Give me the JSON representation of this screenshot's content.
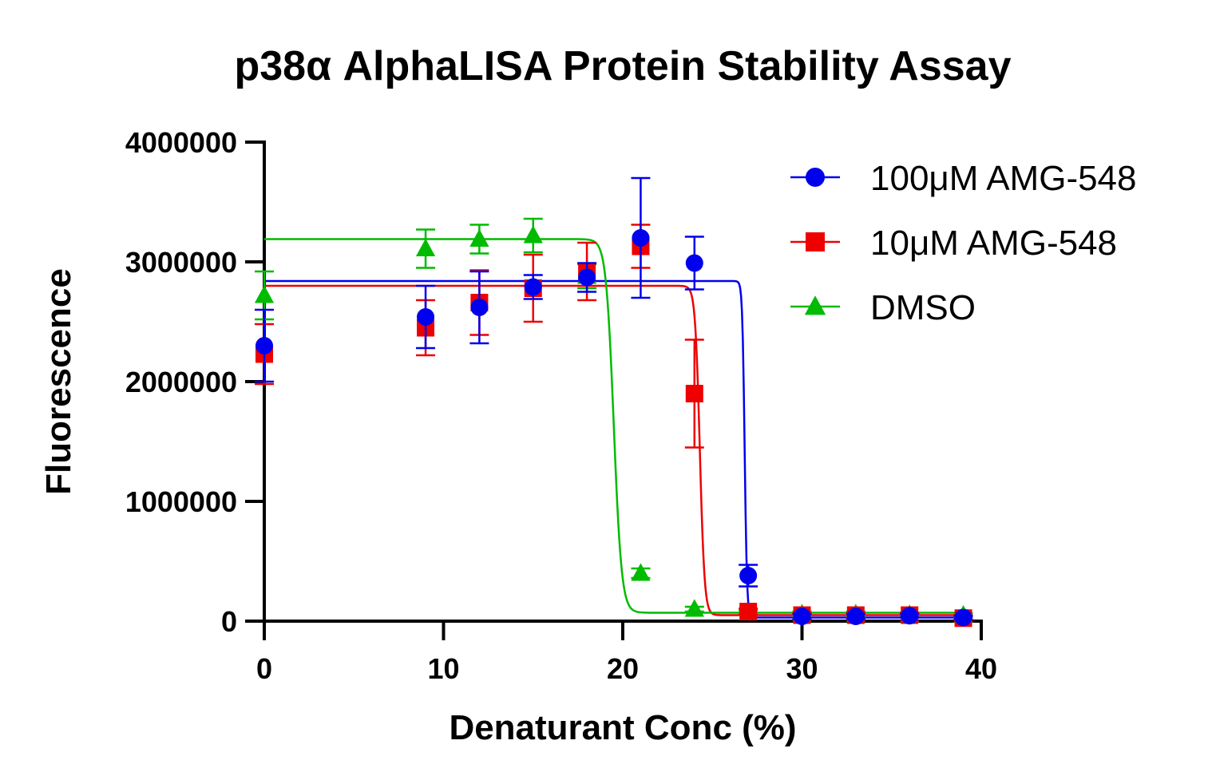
{
  "chart_data": {
    "type": "scatter",
    "title": "p38α AlphaLISA Protein Stability Assay",
    "xlabel": "Denaturant Conc (%)",
    "ylabel": "Fluorescence",
    "xlim": [
      0,
      40
    ],
    "ylim": [
      0,
      4000000
    ],
    "xticks": [
      0,
      10,
      20,
      30,
      40
    ],
    "yticks": [
      0,
      1000000,
      2000000,
      3000000,
      4000000
    ],
    "xtick_labels": [
      "0",
      "10",
      "20",
      "30",
      "40"
    ],
    "ytick_labels": [
      "0",
      "1000000",
      "2000000",
      "3000000",
      "4000000"
    ],
    "grid": false,
    "legend_position": "top-right",
    "series": [
      {
        "name": "100μM AMG-548",
        "color": "#0000ee",
        "marker": "circle",
        "fit": {
          "top": 2840000,
          "bottom": 30000,
          "midpoint": 26.8,
          "slope": 0.15
        },
        "points": [
          {
            "x": 0,
            "y": 2300000,
            "err": 300000
          },
          {
            "x": 9,
            "y": 2540000,
            "err": 260000
          },
          {
            "x": 12,
            "y": 2620000,
            "err": 300000
          },
          {
            "x": 15,
            "y": 2790000,
            "err": 100000
          },
          {
            "x": 18,
            "y": 2870000,
            "err": 120000
          },
          {
            "x": 21,
            "y": 3200000,
            "err": 500000
          },
          {
            "x": 24,
            "y": 2990000,
            "err": 220000
          },
          {
            "x": 27,
            "y": 380000,
            "err": 90000
          },
          {
            "x": 30,
            "y": 40000,
            "err": 20000
          },
          {
            "x": 33,
            "y": 40000,
            "err": 20000
          },
          {
            "x": 36,
            "y": 45000,
            "err": 15000
          },
          {
            "x": 39,
            "y": 30000,
            "err": 15000
          }
        ]
      },
      {
        "name": "10μM AMG-548",
        "color": "#ee0000",
        "marker": "square",
        "fit": {
          "top": 2800000,
          "bottom": 50000,
          "midpoint": 24.3,
          "slope": 0.3
        },
        "points": [
          {
            "x": 0,
            "y": 2230000,
            "err": 250000
          },
          {
            "x": 9,
            "y": 2450000,
            "err": 230000
          },
          {
            "x": 12,
            "y": 2660000,
            "err": 270000
          },
          {
            "x": 15,
            "y": 2780000,
            "err": 280000
          },
          {
            "x": 18,
            "y": 2920000,
            "err": 240000
          },
          {
            "x": 21,
            "y": 3130000,
            "err": 180000
          },
          {
            "x": 24,
            "y": 1900000,
            "err": 450000
          },
          {
            "x": 27,
            "y": 80000,
            "err": 25000
          },
          {
            "x": 30,
            "y": 50000,
            "err": 20000
          },
          {
            "x": 33,
            "y": 50000,
            "err": 20000
          },
          {
            "x": 36,
            "y": 50000,
            "err": 20000
          },
          {
            "x": 39,
            "y": 25000,
            "err": 15000
          }
        ]
      },
      {
        "name": "DMSO",
        "color": "#00bb00",
        "marker": "triangle",
        "fit": {
          "top": 3190000,
          "bottom": 70000,
          "midpoint": 19.5,
          "slope": 0.5
        },
        "points": [
          {
            "x": 0,
            "y": 2720000,
            "err": 200000
          },
          {
            "x": 9,
            "y": 3110000,
            "err": 160000
          },
          {
            "x": 12,
            "y": 3190000,
            "err": 120000
          },
          {
            "x": 15,
            "y": 3220000,
            "err": 140000
          },
          {
            "x": 18,
            "y": 2880000,
            "err": 100000
          },
          {
            "x": 21,
            "y": 400000,
            "err": 40000
          },
          {
            "x": 24,
            "y": 100000,
            "err": 20000
          },
          {
            "x": 27,
            "y": 70000,
            "err": 20000
          },
          {
            "x": 30,
            "y": 60000,
            "err": 20000
          },
          {
            "x": 33,
            "y": 60000,
            "err": 20000
          },
          {
            "x": 36,
            "y": 55000,
            "err": 15000
          },
          {
            "x": 39,
            "y": 50000,
            "err": 15000
          }
        ]
      }
    ]
  }
}
